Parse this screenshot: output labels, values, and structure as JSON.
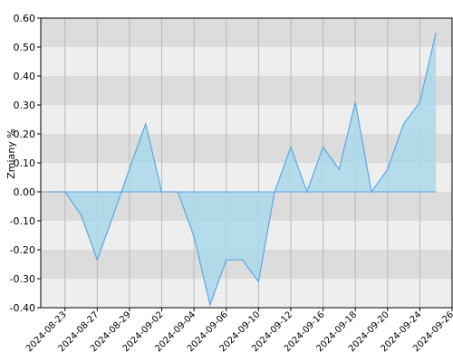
{
  "chart_data": {
    "type": "area",
    "ylabel": "Zmiany %",
    "ylim": [
      -0.4,
      0.6
    ],
    "yticks": [
      "0.60",
      "0.50",
      "0.40",
      "0.30",
      "0.20",
      "0.10",
      "0.00",
      "-0.10",
      "-0.20",
      "-0.30",
      "-0.40"
    ],
    "yticks_values": [
      0.6,
      0.5,
      0.4,
      0.3,
      0.2,
      0.1,
      0.0,
      -0.1,
      -0.2,
      -0.3,
      -0.4
    ],
    "xtick_labels": [
      "2024-08-23",
      "2024-08-27",
      "2024-08-29",
      "2024-09-02",
      "2024-09-04",
      "2024-09-06",
      "2024-09-10",
      "2024-09-12",
      "2024-09-16",
      "2024-09-18",
      "2024-09-20",
      "2024-09-24",
      "2024-09-26"
    ],
    "x": [
      "2024-08-22",
      "2024-08-23",
      "2024-08-26",
      "2024-08-27",
      "2024-08-28",
      "2024-08-29",
      "2024-08-30",
      "2024-09-02",
      "2024-09-03",
      "2024-09-04",
      "2024-09-05",
      "2024-09-06",
      "2024-09-09",
      "2024-09-10",
      "2024-09-11",
      "2024-09-12",
      "2024-09-13",
      "2024-09-16",
      "2024-09-17",
      "2024-09-18",
      "2024-09-19",
      "2024-09-20",
      "2024-09-23",
      "2024-09-24",
      "2024-09-25",
      "2024-09-26"
    ],
    "values": [
      0.0,
      0.0,
      -0.08,
      -0.235,
      -0.08,
      0.08,
      0.235,
      0.0,
      0.0,
      -0.155,
      -0.39,
      -0.235,
      -0.235,
      -0.31,
      0.0,
      0.155,
      0.0,
      0.155,
      0.078,
      0.31,
      0.0,
      0.078,
      0.235,
      0.31,
      0.55,
      null
    ],
    "grid": true,
    "colors": {
      "line": "#5aa7e6",
      "fill": "#a9d8ea",
      "band_dark": "#dcdcdc",
      "band_light": "#eeeeee",
      "grid": "#b8b8b8"
    }
  }
}
